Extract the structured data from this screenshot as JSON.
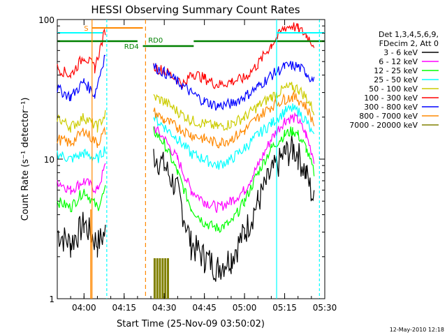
{
  "chart_data": {
    "type": "line",
    "title": "HESSI Observing Summary Count Rates",
    "xlabel": "Start Time (25-Nov-09 03:50:02)",
    "ylabel": "Count Rate (s⁻¹ detector⁻¹)",
    "yscale": "log",
    "ylim": [
      1,
      100
    ],
    "xlim_minutes_after_0350": [
      0,
      100
    ],
    "x_ticks": [
      "04:00",
      "04:15",
      "04:30",
      "04:45",
      "05:00",
      "05:15",
      "05:30"
    ],
    "x_tick_minutes": [
      10,
      25,
      40,
      55,
      70,
      85,
      100
    ],
    "y_ticks": [
      "1",
      "10",
      "100"
    ],
    "legend": {
      "header": [
        "Det 1,3,4,5,6,9,",
        "FDecim 2, Att 0"
      ],
      "position": "right",
      "entries": [
        {
          "label": "3 - 6 keV",
          "color": "#000000"
        },
        {
          "label": "6 - 12 keV",
          "color": "#ff00ff"
        },
        {
          "label": "12 - 25 keV",
          "color": "#00ff00"
        },
        {
          "label": "25 - 50 keV",
          "color": "#00ffff"
        },
        {
          "label": "50 - 100 keV",
          "color": "#cccc00"
        },
        {
          "label": "100 - 300 keV",
          "color": "#ff0000"
        },
        {
          "label": "300 - 800 keV",
          "color": "#0000ff"
        },
        {
          "label": "800 - 7000 keV",
          "color": "#ff8800"
        },
        {
          "label": "7000 - 20000 keV",
          "color": "#808000"
        }
      ]
    },
    "series": [
      {
        "name": "3 - 6 keV",
        "color": "#000000",
        "points": [
          [
            0,
            3.0
          ],
          [
            5,
            2.5
          ],
          [
            10,
            3.5
          ],
          [
            15,
            2.5
          ],
          [
            18,
            3.0
          ],
          [
            23,
            null
          ],
          [
            36,
            11
          ],
          [
            40,
            9
          ],
          [
            45,
            6
          ],
          [
            50,
            2.5
          ],
          [
            55,
            2.0
          ],
          [
            60,
            1.7
          ],
          [
            65,
            2.0
          ],
          [
            70,
            3.0
          ],
          [
            75,
            5
          ],
          [
            80,
            8
          ],
          [
            85,
            11
          ],
          [
            88,
            12
          ],
          [
            90,
            11
          ],
          [
            93,
            8
          ],
          [
            96,
            5
          ]
        ]
      },
      {
        "name": "6 - 12 keV",
        "color": "#ff00ff",
        "points": [
          [
            0,
            7
          ],
          [
            5,
            6
          ],
          [
            10,
            7
          ],
          [
            15,
            6
          ],
          [
            18,
            9
          ],
          [
            23,
            null
          ],
          [
            36,
            17
          ],
          [
            40,
            14
          ],
          [
            45,
            10
          ],
          [
            50,
            6
          ],
          [
            55,
            5
          ],
          [
            60,
            4.5
          ],
          [
            65,
            5
          ],
          [
            70,
            6
          ],
          [
            75,
            9
          ],
          [
            80,
            14
          ],
          [
            85,
            19
          ],
          [
            88,
            20
          ],
          [
            90,
            19
          ],
          [
            93,
            15
          ],
          [
            96,
            10
          ]
        ]
      },
      {
        "name": "12 - 25 keV",
        "color": "#00ff00",
        "points": [
          [
            0,
            5
          ],
          [
            5,
            4.5
          ],
          [
            10,
            6
          ],
          [
            15,
            4.5
          ],
          [
            18,
            6
          ],
          [
            23,
            null
          ],
          [
            36,
            16
          ],
          [
            40,
            13
          ],
          [
            45,
            8
          ],
          [
            50,
            4.5
          ],
          [
            55,
            3.5
          ],
          [
            60,
            3.2
          ],
          [
            65,
            3.5
          ],
          [
            70,
            5
          ],
          [
            75,
            8
          ],
          [
            80,
            12
          ],
          [
            85,
            15
          ],
          [
            88,
            16
          ],
          [
            90,
            15
          ],
          [
            93,
            12
          ],
          [
            96,
            8
          ]
        ]
      },
      {
        "name": "25 - 50 keV",
        "color": "#00ffff",
        "points": [
          [
            0,
            11
          ],
          [
            5,
            10
          ],
          [
            10,
            11
          ],
          [
            15,
            10
          ],
          [
            18,
            12
          ],
          [
            23,
            null
          ],
          [
            36,
            20
          ],
          [
            40,
            17
          ],
          [
            45,
            14
          ],
          [
            50,
            11
          ],
          [
            55,
            10
          ],
          [
            60,
            9
          ],
          [
            65,
            10
          ],
          [
            70,
            12
          ],
          [
            75,
            15
          ],
          [
            80,
            18
          ],
          [
            85,
            22
          ],
          [
            88,
            23
          ],
          [
            90,
            22
          ],
          [
            93,
            19
          ],
          [
            96,
            14
          ]
        ]
      },
      {
        "name": "50 - 100 keV",
        "color": "#cccc00",
        "points": [
          [
            0,
            20
          ],
          [
            5,
            17
          ],
          [
            10,
            20
          ],
          [
            15,
            17
          ],
          [
            18,
            21
          ],
          [
            23,
            null
          ],
          [
            36,
            28
          ],
          [
            40,
            26
          ],
          [
            45,
            22
          ],
          [
            50,
            19
          ],
          [
            55,
            18
          ],
          [
            60,
            17
          ],
          [
            65,
            18
          ],
          [
            70,
            20
          ],
          [
            75,
            24
          ],
          [
            80,
            28
          ],
          [
            85,
            32
          ],
          [
            88,
            33
          ],
          [
            90,
            32
          ],
          [
            93,
            28
          ],
          [
            96,
            22
          ]
        ]
      },
      {
        "name": "100 - 300 keV",
        "color": "#ff0000",
        "points": [
          [
            0,
            45
          ],
          [
            5,
            40
          ],
          [
            10,
            55
          ],
          [
            14,
            45
          ],
          [
            18,
            85
          ],
          [
            23,
            null
          ],
          [
            36,
            46
          ],
          [
            40,
            43
          ],
          [
            48,
            34
          ],
          [
            50,
            42
          ],
          [
            55,
            38
          ],
          [
            60,
            34
          ],
          [
            65,
            36
          ],
          [
            70,
            38
          ],
          [
            75,
            48
          ],
          [
            80,
            66
          ],
          [
            85,
            88
          ],
          [
            88,
            90
          ],
          [
            90,
            86
          ],
          [
            93,
            78
          ],
          [
            96,
            66
          ]
        ]
      },
      {
        "name": "300 - 800 keV",
        "color": "#0000ff",
        "points": [
          [
            0,
            32
          ],
          [
            5,
            28
          ],
          [
            10,
            36
          ],
          [
            14,
            29
          ],
          [
            18,
            58
          ],
          [
            23,
            null
          ],
          [
            36,
            46
          ],
          [
            40,
            42
          ],
          [
            45,
            36
          ],
          [
            50,
            30
          ],
          [
            55,
            26
          ],
          [
            60,
            24
          ],
          [
            65,
            25
          ],
          [
            70,
            28
          ],
          [
            75,
            33
          ],
          [
            80,
            40
          ],
          [
            85,
            46
          ],
          [
            88,
            47
          ],
          [
            90,
            46
          ],
          [
            93,
            42
          ],
          [
            96,
            36
          ]
        ]
      },
      {
        "name": "800 - 7000 keV",
        "color": "#ff8800",
        "points": [
          [
            0,
            14
          ],
          [
            5,
            13
          ],
          [
            10,
            16
          ],
          [
            15,
            13
          ],
          [
            18,
            16
          ],
          [
            23,
            null
          ],
          [
            36,
            22
          ],
          [
            40,
            19
          ],
          [
            45,
            17
          ],
          [
            50,
            15
          ],
          [
            55,
            14
          ],
          [
            60,
            13
          ],
          [
            65,
            14
          ],
          [
            70,
            16
          ],
          [
            75,
            20
          ],
          [
            80,
            24
          ],
          [
            85,
            27
          ],
          [
            88,
            28
          ],
          [
            90,
            27
          ],
          [
            93,
            24
          ],
          [
            96,
            18
          ]
        ]
      },
      {
        "name": "7000 - 20000 keV",
        "color": "#808000",
        "points": [
          [
            36,
            1.3
          ],
          [
            37,
            1.9
          ],
          [
            38,
            1.3
          ],
          [
            39,
            1.9
          ],
          [
            40,
            1.3
          ],
          [
            41,
            1.9
          ]
        ]
      }
    ],
    "annotations": [
      {
        "text": "S",
        "color": "#ff8800"
      },
      {
        "text": "RD0",
        "color": "#008000"
      },
      {
        "text": "RD4",
        "color": "#008000"
      }
    ],
    "footer_text": "12-May-2010 12:18"
  }
}
